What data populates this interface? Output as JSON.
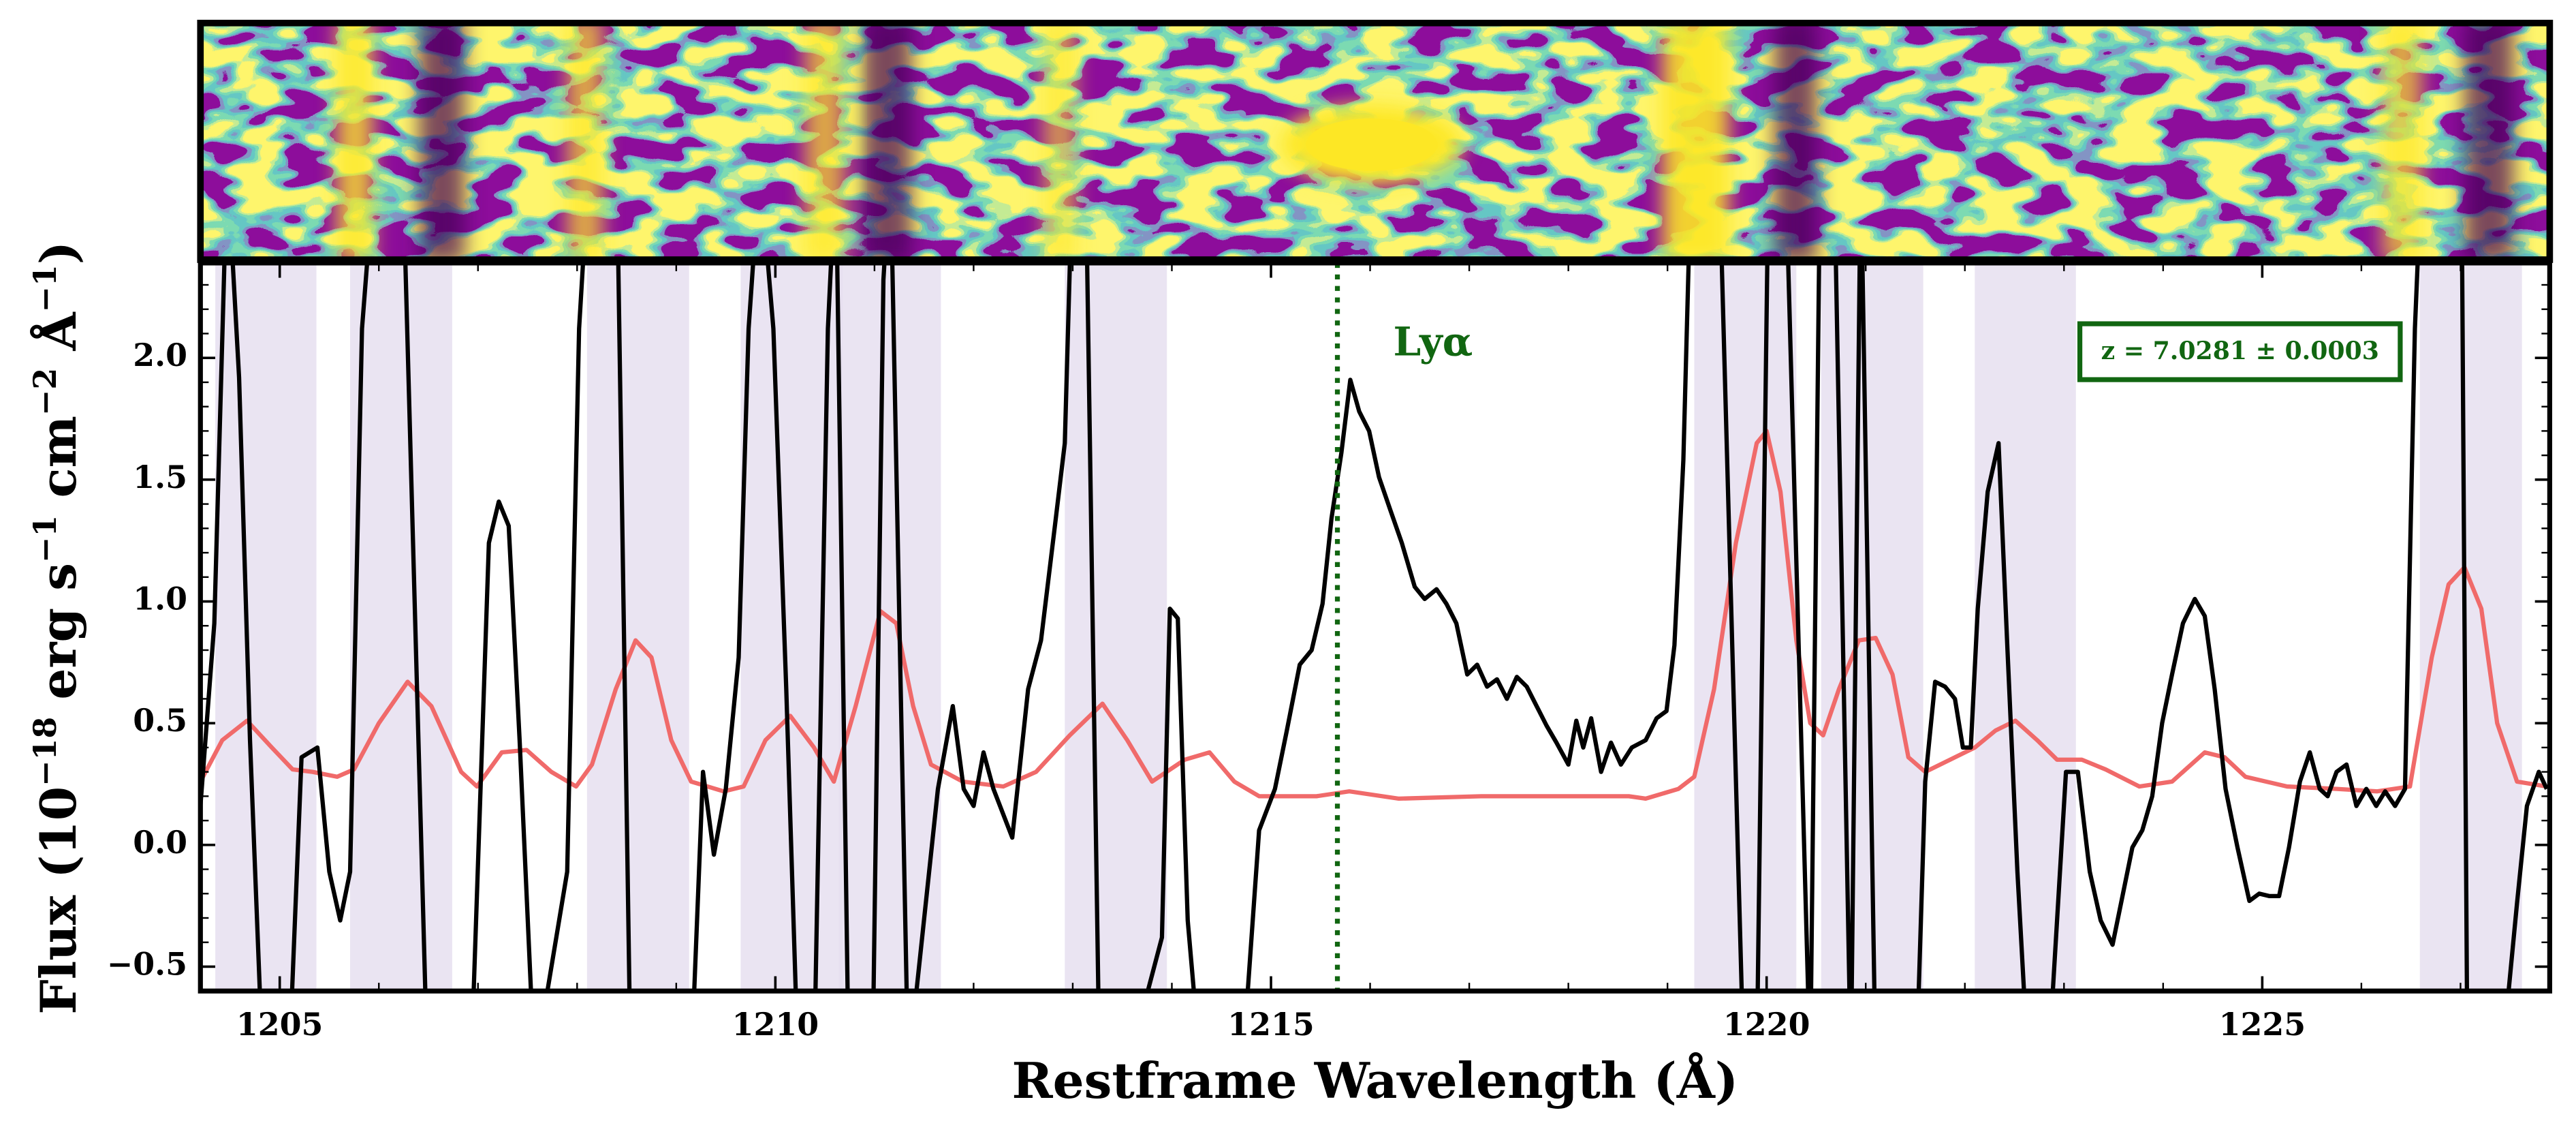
{
  "chart_data": {
    "type": "line",
    "xlabel": "Restframe Wavelength  (Å)",
    "ylabel": [
      "Flux (10",
      "−18",
      " erg s",
      "−1",
      " cm",
      "−2",
      " Å",
      "−1",
      ")"
    ],
    "xlim": [
      1204.2,
      1227.9
    ],
    "ylim": [
      -0.6,
      2.39
    ],
    "xticks": [
      1205,
      1210,
      1215,
      1220,
      1225
    ],
    "yticks": [
      {
        "value": -0.5,
        "label": "−0.5"
      },
      {
        "value": 0,
        "label": "0.0"
      },
      {
        "value": 0.5,
        "label": "0.5"
      },
      {
        "value": 1,
        "label": "1.0"
      },
      {
        "value": 1.5,
        "label": "1.5"
      },
      {
        "value": 2,
        "label": "2.0"
      }
    ],
    "bands": [
      [
        1204.35,
        1205.37
      ],
      [
        1205.71,
        1206.74
      ],
      [
        1208.1,
        1209.13
      ],
      [
        1209.65,
        1210.68
      ],
      [
        1210.64,
        1211.67
      ],
      [
        1212.92,
        1213.95
      ],
      [
        1219.27,
        1220.3
      ],
      [
        1220.55,
        1221.58
      ],
      [
        1222.1,
        1223.12
      ],
      [
        1226.59,
        1227.62
      ]
    ],
    "band_color": "#e6dff0",
    "lines": [
      {
        "x": 1215.67,
        "color": "#116611",
        "label": "Lyα"
      }
    ],
    "annotation": "z = 7.0281 ± 0.0003",
    "annotation_color": "#116611",
    "series": [
      {
        "color": "#000000",
        "x": [
          1204.2,
          1204.34,
          1204.47,
          1204.59,
          1204.7,
          1204.83,
          1205.1,
          1205.22,
          1205.38,
          1205.5,
          1205.61,
          1205.71,
          1205.83,
          1205.96,
          1206.24,
          1206.49,
          1206.93,
          1207.11,
          1207.21,
          1207.31,
          1207.42,
          1207.57,
          1207.9,
          1208.02,
          1208.12,
          1208.4,
          1208.54,
          1209.15,
          1209.27,
          1209.38,
          1209.5,
          1209.63,
          1209.73,
          1209.81,
          1209.91,
          1209.98,
          1210.11,
          1210.23,
          1210.39,
          1210.53,
          1210.61,
          1210.74,
          1210.98,
          1211.09,
          1211.16,
          1211.34,
          1211.64,
          1211.79,
          1211.9,
          1212.0,
          1212.1,
          1212.2,
          1212.39,
          1212.55,
          1212.68,
          1212.82,
          1212.92,
          1213.0,
          1213.13,
          1213.27,
          1213.55,
          1213.9,
          1213.98,
          1214.06,
          1214.16,
          1214.29,
          1214.71,
          1214.88,
          1215.04,
          1215.16,
          1215.29,
          1215.41,
          1215.52,
          1215.61,
          1215.71,
          1215.8,
          1215.89,
          1215.99,
          1216.09,
          1216.2,
          1216.32,
          1216.45,
          1216.55,
          1216.67,
          1216.77,
          1216.87,
          1216.98,
          1217.08,
          1217.18,
          1217.28,
          1217.38,
          1217.48,
          1217.58,
          1217.68,
          1217.78,
          1217.88,
          1218.0,
          1218.08,
          1218.15,
          1218.23,
          1218.33,
          1218.43,
          1218.53,
          1218.64,
          1218.78,
          1218.89,
          1218.99,
          1219.07,
          1219.16,
          1219.24,
          1219.52,
          1219.77,
          1219.9,
          1220.02,
          1220.19,
          1220.44,
          1220.54,
          1220.68,
          1220.85,
          1220.95,
          1221.1,
          1221.51,
          1221.6,
          1221.7,
          1221.8,
          1221.9,
          1221.98,
          1222.06,
          1222.13,
          1222.23,
          1222.34,
          1222.43,
          1222.53,
          1222.64,
          1222.84,
          1223.02,
          1223.14,
          1223.26,
          1223.37,
          1223.49,
          1223.59,
          1223.69,
          1223.79,
          1223.89,
          1223.99,
          1224.09,
          1224.2,
          1224.32,
          1224.42,
          1224.52,
          1224.63,
          1224.75,
          1224.87,
          1224.97,
          1225.07,
          1225.17,
          1225.27,
          1225.38,
          1225.48,
          1225.58,
          1225.66,
          1225.75,
          1225.85,
          1225.95,
          1226.05,
          1226.15,
          1226.24,
          1226.34,
          1226.44,
          1226.54,
          1226.61,
          1227.01,
          1227.07,
          1227.41,
          1227.57,
          1227.67,
          1227.79,
          1227.87
        ],
        "values": [
          0.16,
          0.91,
          2.8,
          1.92,
          0.43,
          -0.92,
          -0.85,
          0.36,
          0.4,
          -0.11,
          -0.31,
          -0.11,
          2.12,
          2.8,
          2.8,
          -0.92,
          -0.92,
          1.24,
          1.41,
          1.31,
          0.43,
          -0.92,
          -0.11,
          2.12,
          2.8,
          2.8,
          -0.92,
          -0.92,
          0.3,
          -0.04,
          0.23,
          0.77,
          2.12,
          2.59,
          2.46,
          2.12,
          0.64,
          -0.92,
          -0.92,
          2.12,
          2.8,
          -0.92,
          -0.92,
          2.32,
          2.8,
          -0.92,
          0.23,
          0.57,
          0.23,
          0.16,
          0.38,
          0.23,
          0.03,
          0.64,
          0.84,
          1.31,
          1.65,
          2.8,
          2.8,
          -0.92,
          -0.92,
          -0.38,
          0.97,
          0.93,
          -0.31,
          -0.92,
          -0.92,
          0.06,
          0.23,
          0.47,
          0.74,
          0.8,
          0.99,
          1.34,
          1.61,
          1.91,
          1.78,
          1.7,
          1.51,
          1.38,
          1.24,
          1.06,
          1.01,
          1.05,
          0.99,
          0.91,
          0.7,
          0.74,
          0.65,
          0.68,
          0.6,
          0.69,
          0.65,
          0.57,
          0.49,
          0.42,
          0.33,
          0.51,
          0.4,
          0.52,
          0.3,
          0.42,
          0.33,
          0.4,
          0.43,
          0.52,
          0.55,
          0.82,
          1.58,
          2.8,
          2.8,
          -0.92,
          -0.92,
          2.8,
          2.8,
          -0.92,
          2.8,
          2.8,
          -0.92,
          2.8,
          -0.92,
          -0.92,
          0.26,
          0.67,
          0.65,
          0.6,
          0.4,
          0.4,
          0.97,
          1.45,
          1.65,
          0.8,
          -0.11,
          -0.92,
          -0.92,
          0.3,
          0.3,
          -0.11,
          -0.31,
          -0.41,
          -0.21,
          -0.01,
          0.06,
          0.2,
          0.5,
          0.7,
          0.91,
          1.01,
          0.94,
          0.64,
          0.23,
          -0.01,
          -0.23,
          -0.2,
          -0.21,
          -0.21,
          -0.01,
          0.26,
          0.38,
          0.23,
          0.2,
          0.3,
          0.33,
          0.16,
          0.23,
          0.16,
          0.22,
          0.16,
          0.23,
          2.12,
          2.8,
          2.8,
          -0.92,
          -0.92,
          -0.24,
          0.16,
          0.3,
          0.23
        ]
      },
      {
        "color": "#f06a6a",
        "x": [
          1204.2,
          1204.42,
          1204.67,
          1204.92,
          1205.13,
          1205.33,
          1205.58,
          1205.75,
          1206.0,
          1206.29,
          1206.53,
          1206.83,
          1206.99,
          1207.24,
          1207.49,
          1207.74,
          1207.99,
          1208.15,
          1208.39,
          1208.59,
          1208.75,
          1208.95,
          1209.15,
          1209.48,
          1209.68,
          1209.9,
          1210.15,
          1210.39,
          1210.59,
          1210.81,
          1211.06,
          1211.22,
          1211.39,
          1211.57,
          1211.89,
          1212.3,
          1212.63,
          1212.97,
          1213.3,
          1213.55,
          1213.8,
          1214.13,
          1214.38,
          1214.63,
          1214.88,
          1215.46,
          1215.79,
          1216.29,
          1217.12,
          1217.95,
          1218.61,
          1218.78,
          1219.11,
          1219.27,
          1219.47,
          1219.69,
          1219.9,
          1220.0,
          1220.14,
          1220.3,
          1220.44,
          1220.57,
          1220.73,
          1220.93,
          1221.1,
          1221.27,
          1221.43,
          1221.6,
          1221.85,
          1222.1,
          1222.31,
          1222.51,
          1222.73,
          1222.93,
          1223.18,
          1223.42,
          1223.76,
          1224.09,
          1224.42,
          1224.62,
          1224.83,
          1225.25,
          1225.75,
          1226.16,
          1226.49,
          1226.71,
          1226.88,
          1227.04,
          1227.21,
          1227.37,
          1227.57,
          1227.87
        ],
        "values": [
          0.26,
          0.43,
          0.51,
          0.4,
          0.31,
          0.3,
          0.28,
          0.31,
          0.5,
          0.67,
          0.57,
          0.3,
          0.24,
          0.38,
          0.39,
          0.3,
          0.24,
          0.33,
          0.64,
          0.84,
          0.77,
          0.43,
          0.26,
          0.22,
          0.24,
          0.43,
          0.53,
          0.4,
          0.26,
          0.57,
          0.96,
          0.91,
          0.57,
          0.33,
          0.26,
          0.24,
          0.3,
          0.45,
          0.58,
          0.43,
          0.26,
          0.35,
          0.38,
          0.26,
          0.2,
          0.2,
          0.22,
          0.19,
          0.2,
          0.2,
          0.2,
          0.19,
          0.23,
          0.28,
          0.64,
          1.24,
          1.65,
          1.7,
          1.45,
          0.84,
          0.5,
          0.45,
          0.64,
          0.84,
          0.85,
          0.7,
          0.36,
          0.3,
          0.35,
          0.4,
          0.47,
          0.51,
          0.43,
          0.35,
          0.35,
          0.31,
          0.24,
          0.26,
          0.38,
          0.36,
          0.28,
          0.24,
          0.23,
          0.22,
          0.24,
          0.77,
          1.07,
          1.14,
          0.97,
          0.5,
          0.26,
          0.24
        ]
      }
    ]
  }
}
